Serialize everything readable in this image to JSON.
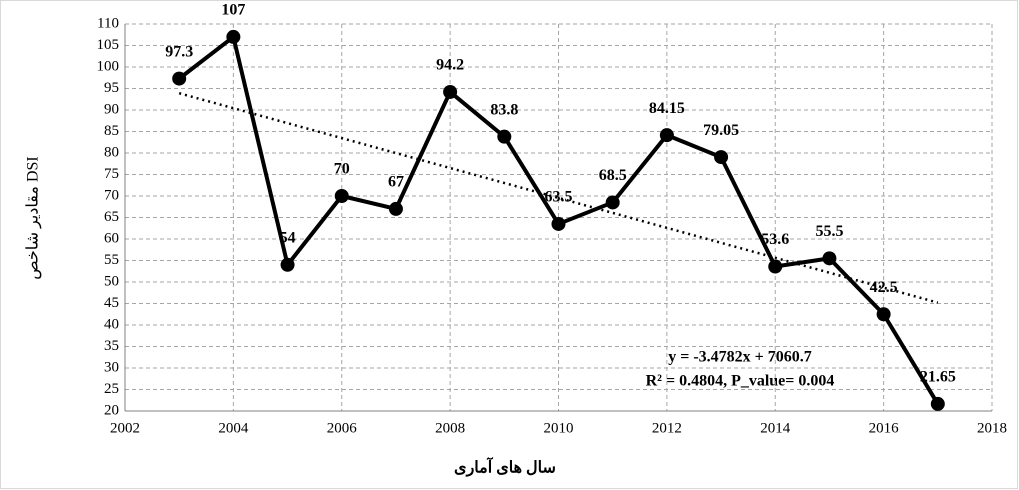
{
  "chart_data": {
    "type": "line",
    "x_label": "سال های آماری",
    "y_label": "مقادیر شاخص DSI",
    "x": [
      2003,
      2004,
      2005,
      2006,
      2007,
      2008,
      2009,
      2010,
      2011,
      2012,
      2013,
      2014,
      2015,
      2016,
      2017
    ],
    "values": [
      97.3,
      107,
      54,
      70,
      67,
      94.2,
      83.8,
      63.5,
      68.5,
      84.15,
      79.05,
      53.6,
      55.5,
      42.5,
      21.65
    ],
    "color": "#000000",
    "trend": {
      "x": [
        2003,
        2017
      ],
      "values": [
        93.9,
        45.2
      ]
    },
    "annotations": [
      "y = -3.4782x + 7060.7",
      "R² = 0.4804, P_value= 0.004"
    ],
    "xlim": [
      2002,
      2018
    ],
    "xticks": [
      2002,
      2004,
      2006,
      2008,
      2010,
      2012,
      2014,
      2016,
      2018
    ],
    "ylim": [
      20,
      110
    ],
    "yticks": [
      20,
      25,
      30,
      35,
      40,
      45,
      50,
      55,
      60,
      65,
      70,
      75,
      80,
      85,
      90,
      95,
      100,
      105,
      110
    ],
    "grid": true
  }
}
